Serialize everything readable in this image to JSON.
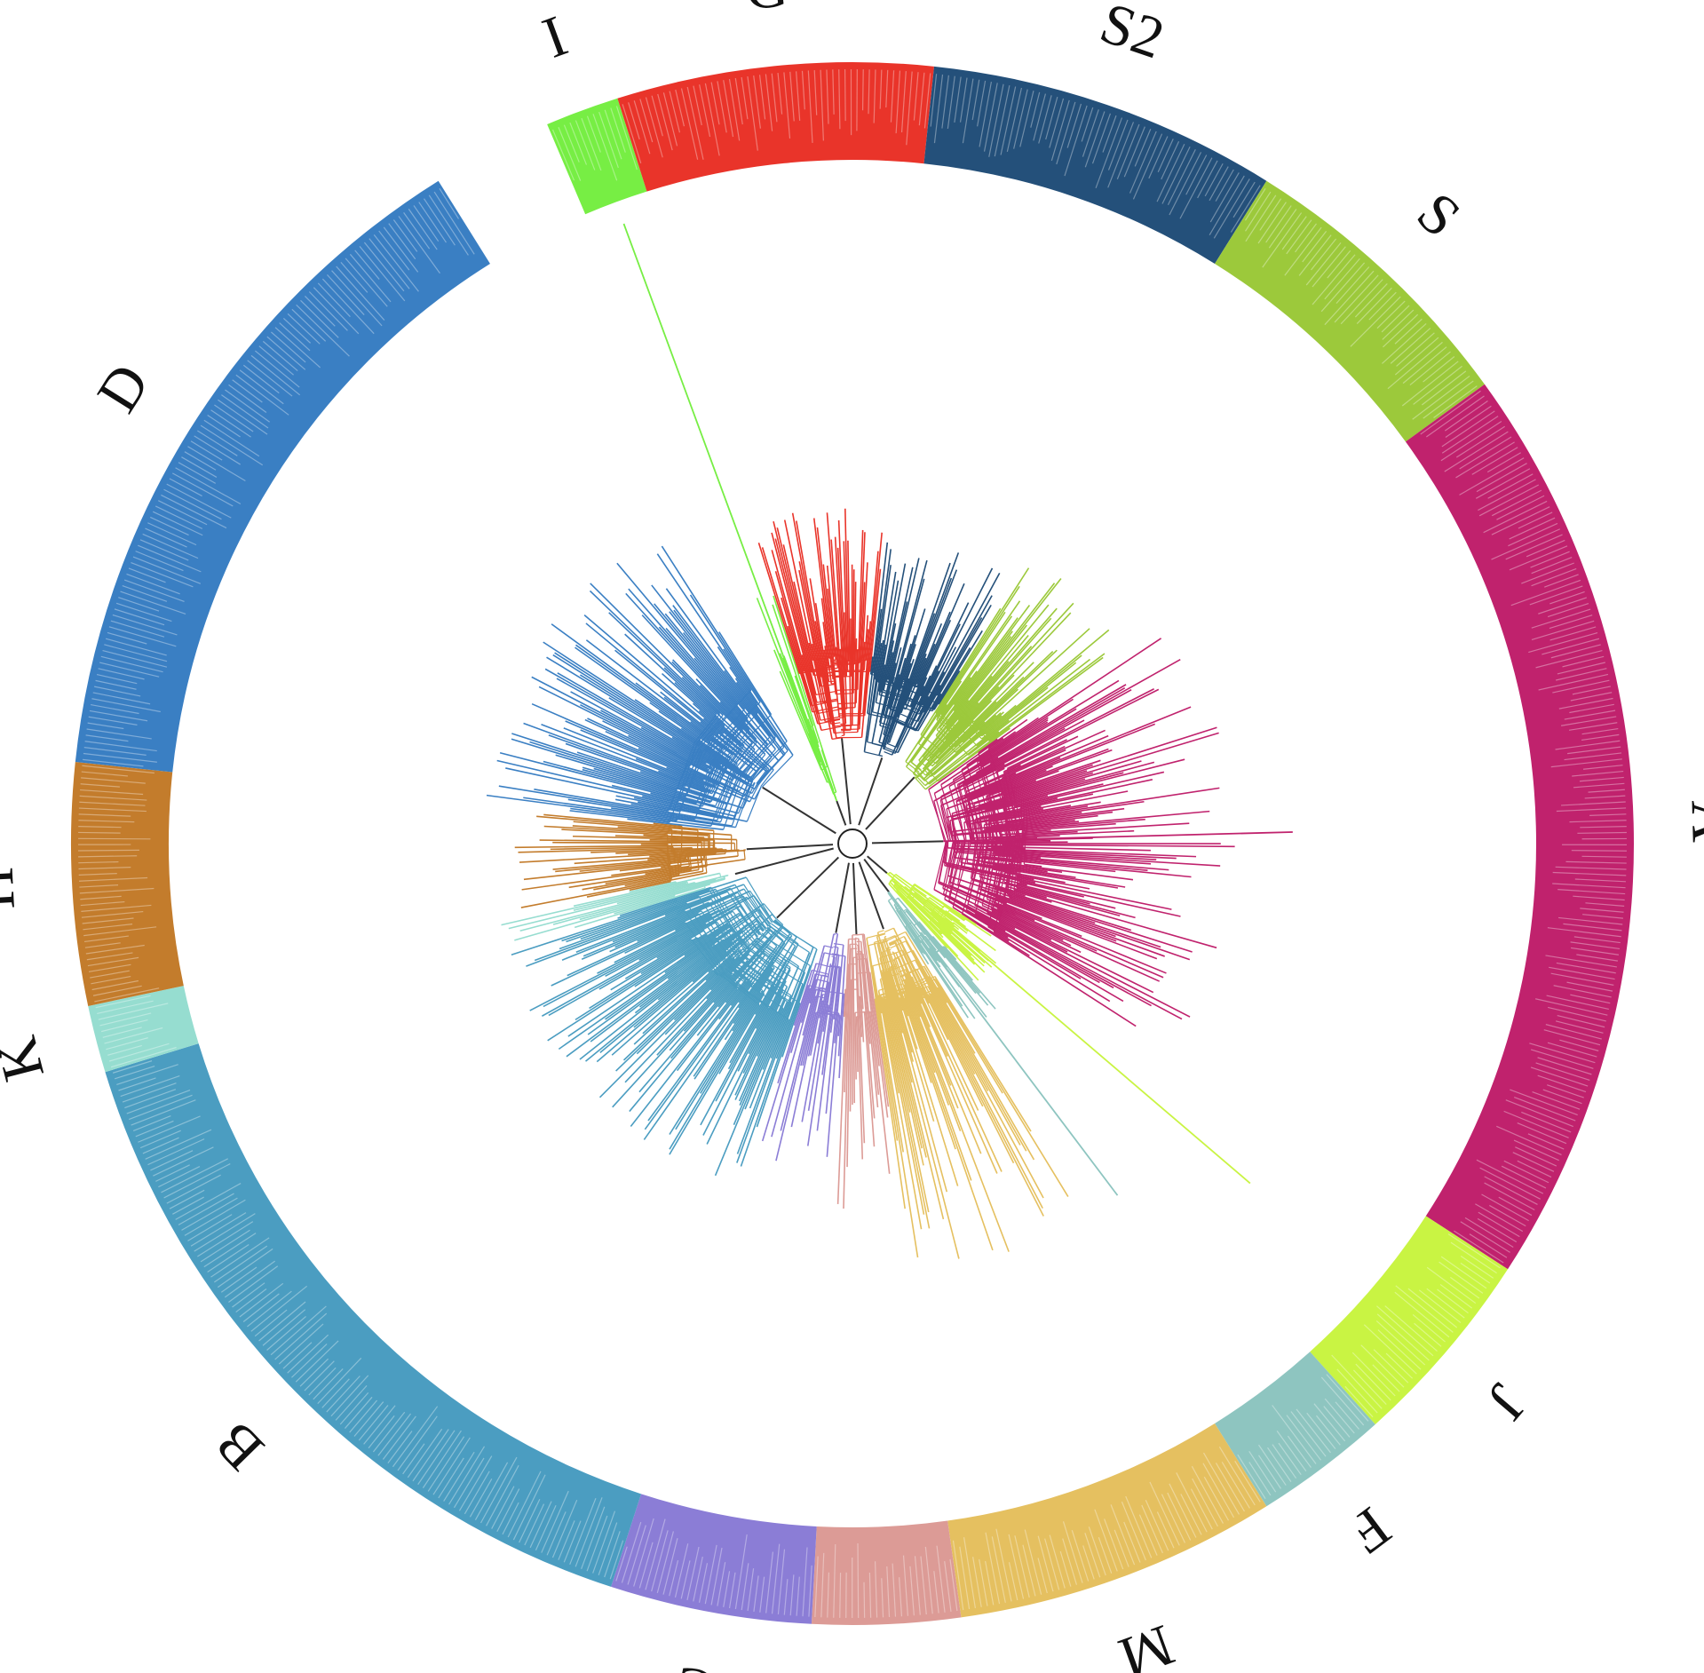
{
  "figure": {
    "type": "circular-phylogenetic-tree",
    "groups": [
      {
        "label": "I",
        "color": "#77ee44",
        "start_deg": -23.0,
        "end_deg": -17.5,
        "branches": 14,
        "reach": [
          0.15,
          0.5
        ],
        "outlier_reach": 1.0
      },
      {
        "label": "G",
        "color": "#e9342a",
        "start_deg": -17.5,
        "end_deg": 6.0,
        "branches": 60,
        "reach": [
          0.35,
          0.62
        ]
      },
      {
        "label": "S2",
        "color": "#24507a",
        "start_deg": 6.0,
        "end_deg": 32.0,
        "branches": 64,
        "reach": [
          0.3,
          0.58
        ]
      },
      {
        "label": "S",
        "color": "#9cc93b",
        "start_deg": 32.0,
        "end_deg": 54.0,
        "branches": 55,
        "reach": [
          0.3,
          0.62
        ]
      },
      {
        "label": "A",
        "color": "#c0226d",
        "start_deg": 54.0,
        "end_deg": 123.0,
        "branches": 160,
        "reach": [
          0.3,
          0.7
        ],
        "outlier_reach": 0.8
      },
      {
        "label": "J",
        "color": "#c9f443",
        "start_deg": 123.0,
        "end_deg": 138.0,
        "branches": 34,
        "reach": [
          0.15,
          0.35
        ],
        "outlier_reach": 0.95
      },
      {
        "label": "F",
        "color": "#8ec5c0",
        "start_deg": 138.0,
        "end_deg": 148.0,
        "branches": 22,
        "reach": [
          0.2,
          0.4
        ],
        "outlier_reach": 0.8
      },
      {
        "label": "M",
        "color": "#e5c060",
        "start_deg": 148.0,
        "end_deg": 172.0,
        "branches": 62,
        "reach": [
          0.3,
          0.8
        ]
      },
      {
        "label": "E",
        "color": "#dc9b96",
        "start_deg": 172.0,
        "end_deg": 183.0,
        "branches": 24,
        "reach": [
          0.3,
          0.7
        ]
      },
      {
        "label": "C",
        "color": "#8b7dd6",
        "start_deg": 183.0,
        "end_deg": 198.0,
        "branches": 32,
        "reach": [
          0.3,
          0.62
        ]
      },
      {
        "label": "B",
        "color": "#4b9dc1",
        "start_deg": 198.0,
        "end_deg": 253.0,
        "branches": 130,
        "reach": [
          0.35,
          0.66
        ]
      },
      {
        "label": "K",
        "color": "#96ddd0",
        "start_deg": 253.0,
        "end_deg": 258.0,
        "branches": 12,
        "reach": [
          0.4,
          0.66
        ]
      },
      {
        "label": "H",
        "color": "#c37c2c",
        "start_deg": 258.0,
        "end_deg": 276.0,
        "branches": 42,
        "reach": [
          0.35,
          0.62
        ]
      },
      {
        "label": "D",
        "color": "#3a7fc3",
        "start_deg": 276.0,
        "end_deg": 328.0,
        "branches": 120,
        "reach": [
          0.35,
          0.68
        ]
      }
    ]
  }
}
